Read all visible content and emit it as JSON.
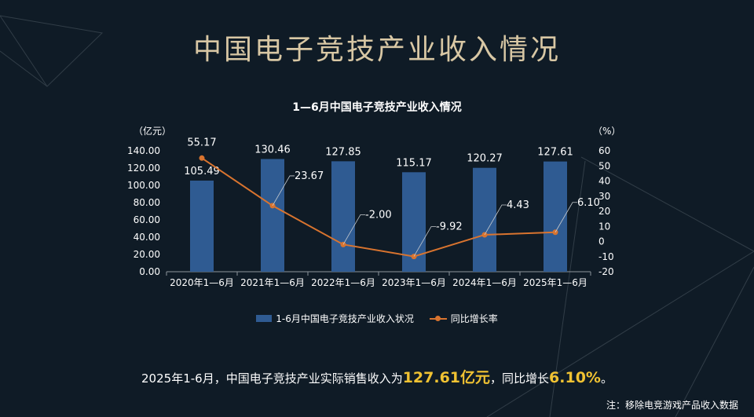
{
  "page_title": "中国电子竞技产业收入情况",
  "summary": {
    "prefix": "2025年1-6月，中国电子竞技产业实际销售收入为",
    "value": "127.61亿元",
    "mid": "，同比增长",
    "rate": "6.10%",
    "suffix": "。"
  },
  "note": "注：移除电竞游戏产品收入数据",
  "colors": {
    "bar": "#2f5b92",
    "line": "#d9742f",
    "title": "#d8c7a4",
    "highlight": "#f0c232",
    "background": "#0f1b26"
  },
  "chart_data": {
    "type": "bar",
    "title": "1—6月中国电子竞技产业收入情况",
    "ylabel": "（亿元）",
    "y2label": "（%）",
    "categories": [
      "2020年1—6月",
      "2021年1—6月",
      "2022年1—6月",
      "2023年1—6月",
      "2024年1—6月",
      "2025年1—6月"
    ],
    "ylim": [
      0,
      140
    ],
    "y_ticks": [
      "0.00",
      "20.00",
      "40.00",
      "60.00",
      "80.00",
      "100.00",
      "120.00",
      "140.00"
    ],
    "y2lim": [
      -20,
      60
    ],
    "y2_ticks": [
      "-20",
      "-10",
      "0",
      "10",
      "20",
      "30",
      "40",
      "50",
      "60"
    ],
    "legend_position": "bottom",
    "series": [
      {
        "name": "1-6月中国电子竞技产业收入状况",
        "type": "bar",
        "axis": "left",
        "values": [
          105.49,
          130.46,
          127.85,
          115.17,
          120.27,
          127.61
        ],
        "labels": [
          "105.49",
          "130.46",
          "127.85",
          "115.17",
          "120.27",
          "127.61"
        ]
      },
      {
        "name": "同比增长率",
        "type": "line",
        "axis": "right",
        "values": [
          55.17,
          23.67,
          -2.0,
          -9.92,
          4.43,
          6.1
        ],
        "labels": [
          "55.17",
          "23.67",
          "-2.00",
          "-9.92",
          "4.43",
          "6.10"
        ]
      }
    ]
  }
}
